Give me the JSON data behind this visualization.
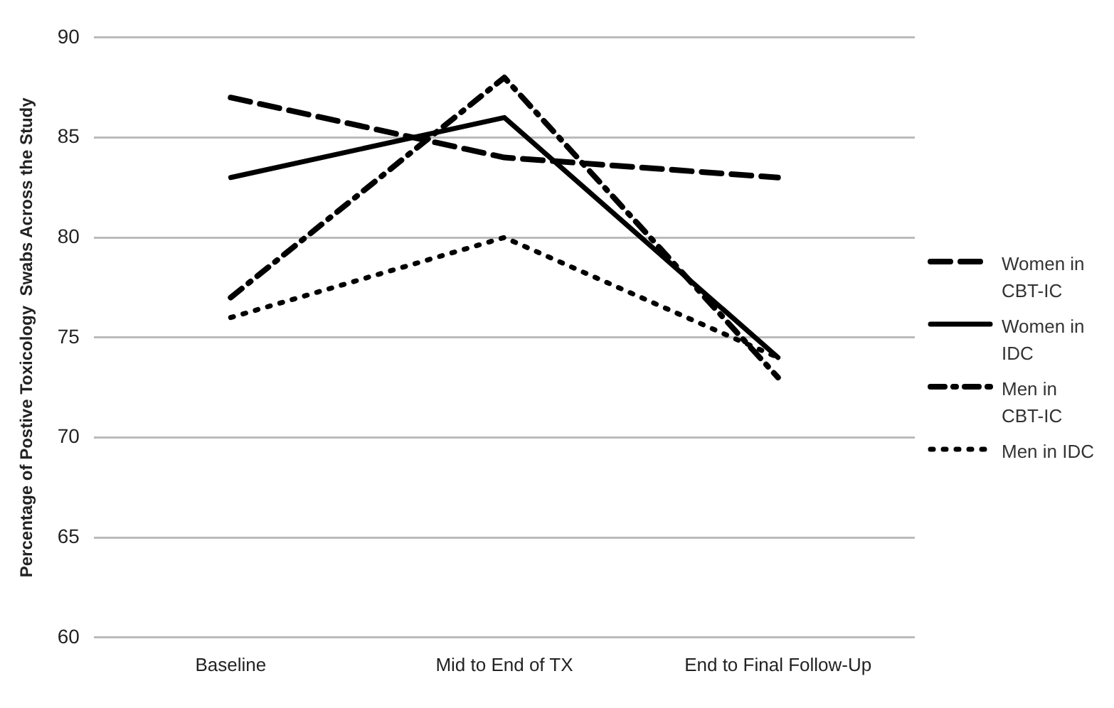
{
  "chart_data": {
    "type": "line",
    "ylabel": "Percentage of Postive Toxicology  Swabs Across the Study",
    "categories": [
      "Baseline",
      "Mid to End of TX",
      "End to Final Follow-Up"
    ],
    "series": [
      {
        "name": "Women in CBT-IC",
        "color": "#000000",
        "line_style": "dashed",
        "values": [
          87,
          84,
          83
        ]
      },
      {
        "name": "Women in IDC",
        "color": "#000000",
        "line_style": "solid",
        "values": [
          83,
          86,
          74
        ]
      },
      {
        "name": "Men in CBT-IC",
        "color": "#000000",
        "line_style": "dashdot",
        "values": [
          77,
          88,
          73
        ]
      },
      {
        "name": "Men in IDC",
        "color": "#000000",
        "line_style": "dotted",
        "values": [
          76,
          80,
          74
        ]
      }
    ],
    "ylim": [
      60,
      90
    ],
    "yticks": [
      60,
      65,
      70,
      75,
      80,
      85,
      90
    ],
    "grid": "y",
    "legend": "right",
    "marker": "none"
  }
}
